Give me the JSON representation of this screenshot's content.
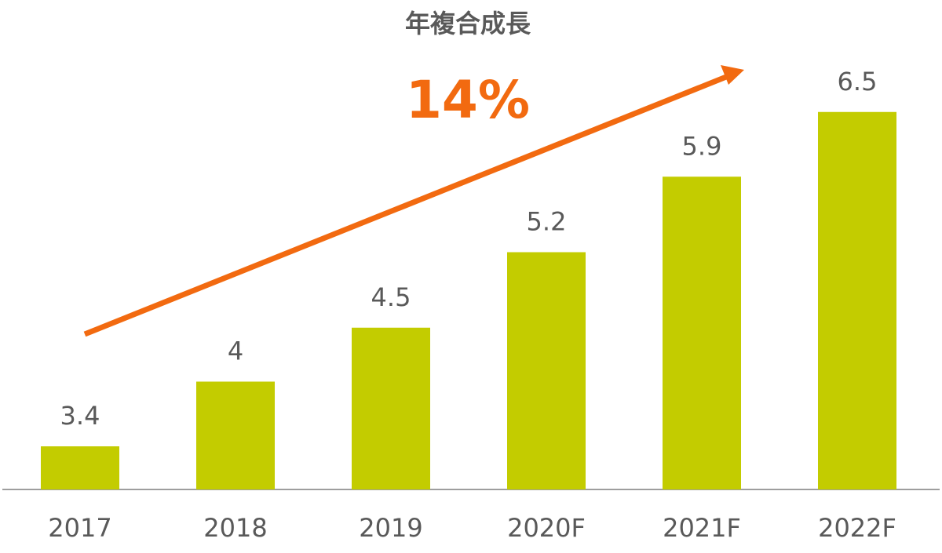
{
  "chart_data": {
    "type": "bar",
    "title": "年複合成長",
    "annotation": "14%",
    "categories": [
      "2017",
      "2018",
      "2019",
      "2020F",
      "2021F",
      "2022F"
    ],
    "values": [
      3.4,
      4,
      4.5,
      5.2,
      5.9,
      6.5
    ],
    "color": "#c3cc00",
    "annotation_color": "#f26a10",
    "ylim": [
      3,
      7
    ]
  }
}
